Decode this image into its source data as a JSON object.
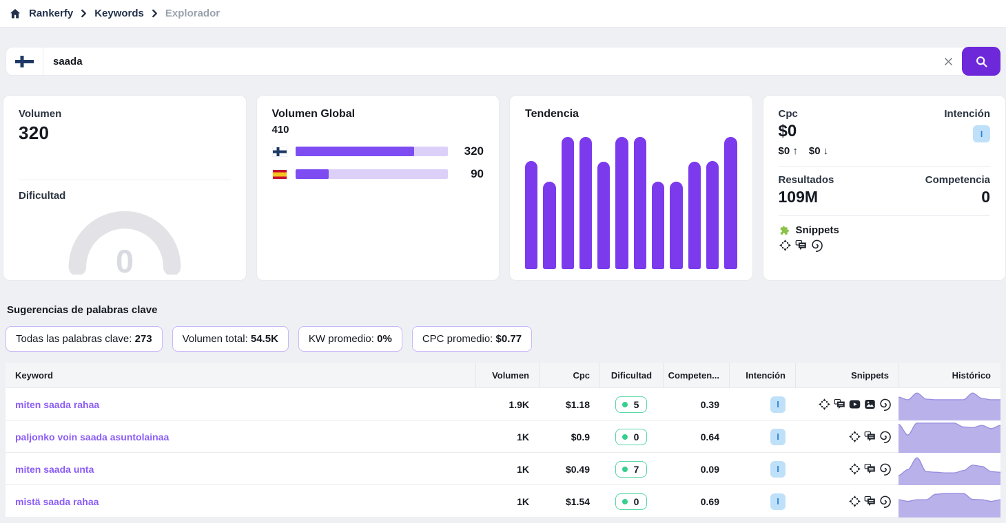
{
  "app": {
    "accent": "#7c3aed",
    "search_button": "#6d28d9",
    "keyword_link": "#8b5cf6",
    "spark_fill": "#b8b1ea",
    "spark_stroke": "#968cdf",
    "intent_bg": "#bfe0f9",
    "intent_fg": "#3584d6",
    "difficulty_border": "#57d6a3",
    "difficulty_dot": "#37cf8d"
  },
  "breadcrumb": {
    "items": [
      {
        "label": "Rankerfy"
      },
      {
        "label": "Keywords"
      },
      {
        "label": "Explorador"
      }
    ]
  },
  "search": {
    "value": "saada",
    "country": "finland"
  },
  "cards": {
    "volume": {
      "label": "Volumen",
      "value": "320",
      "difficulty_label": "Dificultad",
      "difficulty_value": "0"
    },
    "global": {
      "title": "Volumen Global",
      "total": "410",
      "rows": [
        {
          "country": "finland",
          "value": "320",
          "pct": 78
        },
        {
          "country": "spain",
          "value": "90",
          "pct": 22
        }
      ]
    },
    "trend": {
      "title": "Tendencia",
      "bars_pct": [
        82,
        66,
        100,
        100,
        81,
        100,
        100,
        66,
        66,
        81,
        82,
        100
      ]
    },
    "metrics": {
      "cpc_label": "Cpc",
      "cpc_value": "$0",
      "cpc_high": "$0",
      "cpc_high_arrow": "↑",
      "cpc_low": "$0",
      "cpc_low_arrow": "↓",
      "intent_label": "Intención",
      "intent_value": "I",
      "results_label": "Resultados",
      "results_value": "109M",
      "competition_label": "Competencia",
      "competition_value": "0",
      "snippets_label": "Snippets",
      "snippets_icons": [
        "arrows",
        "chat",
        "spiral"
      ]
    }
  },
  "suggestions": {
    "title": "Sugerencias de palabras clave",
    "chips": [
      {
        "label": "Todas las palabras clave:",
        "value": "273"
      },
      {
        "label": "Volumen total:",
        "value": "54.5K"
      },
      {
        "label": "KW promedio:",
        "value": "0%"
      },
      {
        "label": "CPC promedio:",
        "value": "$0.77"
      }
    ]
  },
  "table": {
    "headers": [
      "Keyword",
      "Volumen",
      "Cpc",
      "Dificultad",
      "Competen...",
      "Intención",
      "Snippets",
      "Histórico"
    ],
    "rows": [
      {
        "keyword": "miten saada rahaa",
        "volume": "1.9K",
        "cpc": "$1.18",
        "difficulty": "5",
        "competition": "0.39",
        "intent": "I",
        "snippets": [
          "arrows",
          "chat",
          "video",
          "image",
          "spiral"
        ],
        "history": [
          0.72,
          0.64,
          0.85,
          0.66,
          0.64,
          0.64,
          0.64,
          0.64,
          0.85,
          0.68,
          0.64,
          0.64
        ]
      },
      {
        "keyword": "paljonko voin saada asuntolainaa",
        "volume": "1K",
        "cpc": "$0.9",
        "difficulty": "0",
        "competition": "0.64",
        "intent": "I",
        "snippets": [
          "arrows",
          "chat",
          "spiral"
        ],
        "history": [
          0.88,
          0.55,
          0.92,
          0.92,
          0.92,
          0.92,
          0.92,
          0.8,
          0.78,
          0.85,
          0.75,
          0.85
        ]
      },
      {
        "keyword": "miten saada unta",
        "volume": "1K",
        "cpc": "$0.49",
        "difficulty": "7",
        "competition": "0.09",
        "intent": "I",
        "snippets": [
          "arrows",
          "chat",
          "spiral"
        ],
        "history": [
          0.3,
          0.48,
          0.85,
          0.42,
          0.4,
          0.38,
          0.38,
          0.45,
          0.62,
          0.58,
          0.42,
          0.4
        ]
      },
      {
        "keyword": "mistä saada rahaa",
        "volume": "1K",
        "cpc": "$1.54",
        "difficulty": "0",
        "competition": "0.69",
        "intent": "I",
        "snippets": [
          "arrows",
          "chat",
          "spiral"
        ],
        "history": [
          0.55,
          0.5,
          0.55,
          0.55,
          0.72,
          0.74,
          0.74,
          0.74,
          0.56,
          0.55,
          0.5,
          0.55
        ]
      }
    ]
  }
}
